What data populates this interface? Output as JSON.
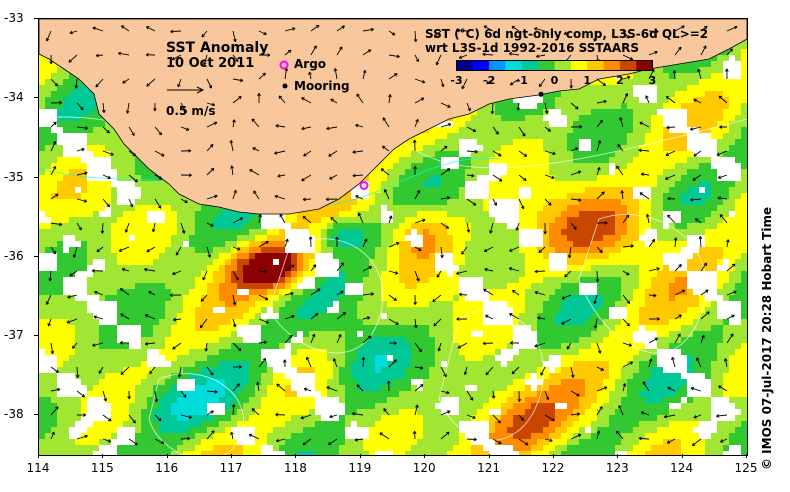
{
  "title": {
    "line1": "SST Anomaly",
    "line2": "10 Oct 2011"
  },
  "legend": {
    "vector_label": "0.5 m/s",
    "argo_label": "Argo",
    "mooring_label": "Mooring",
    "argo_color": "#ff00ff",
    "mooring_color": "#000000"
  },
  "product": {
    "line1": "SST (°C) 6d ngt-only comp, L3S-6d QL>=2",
    "line2": "wrt L3S-1d 1992-2016 SSTAARS"
  },
  "colorbar": {
    "min": -3,
    "max": 3,
    "tick_labels": [
      "-3",
      "-2",
      "-1",
      "0",
      "1",
      "2",
      "3"
    ],
    "colors": [
      "#00008b",
      "#0000ff",
      "#0096ff",
      "#00dcdc",
      "#00c896",
      "#32c832",
      "#a0e632",
      "#ffff00",
      "#ffc800",
      "#ff8c00",
      "#c84600",
      "#8b0000"
    ]
  },
  "axes": {
    "lon_min": 114,
    "lon_max": 125,
    "lat_min": -38.5,
    "lat_max": -33,
    "x_ticks": [
      "114",
      "115",
      "116",
      "117",
      "118",
      "119",
      "120",
      "121",
      "122",
      "123",
      "124",
      "125"
    ],
    "y_ticks": [
      "-33",
      "-34",
      "-35",
      "-36",
      "-37",
      "-38"
    ]
  },
  "markers": {
    "argo_lon": 119.05,
    "argo_lat": -35.1,
    "mooring_lon": 121.8,
    "mooring_lat": -33.95
  },
  "land_color": "#f8c89c",
  "copyright": "© IMOS 07-Jul-2017 20:28 Hobart Time"
}
